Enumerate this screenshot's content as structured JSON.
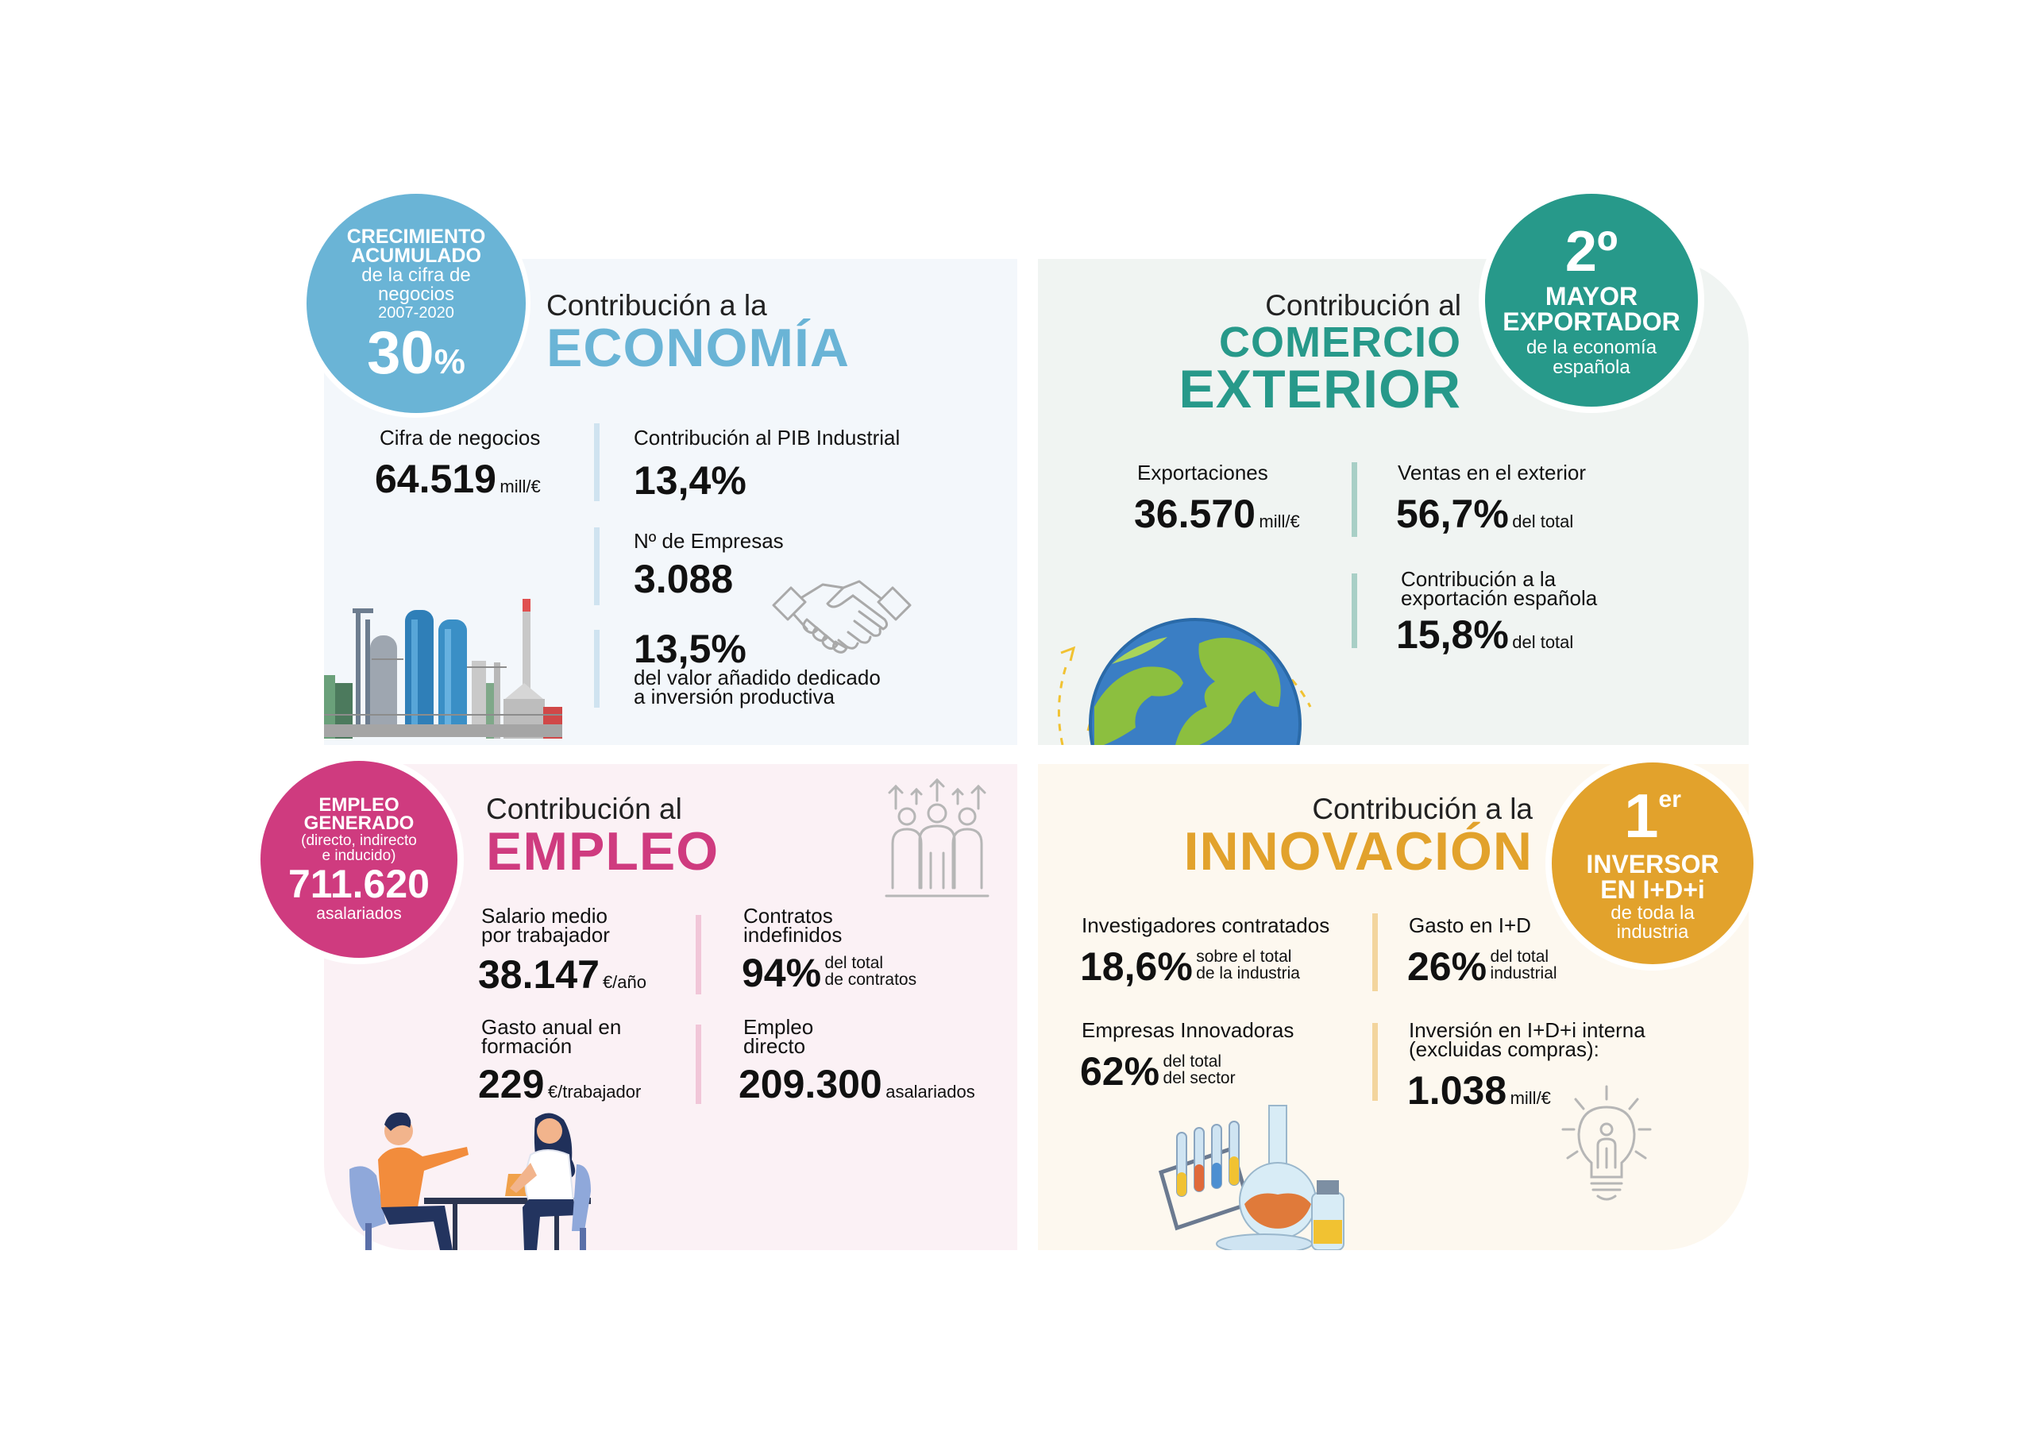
{
  "colors": {
    "economia": "#6ab4d6",
    "comercio": "#27998a",
    "empleo": "#cf3b7f",
    "innovacion": "#e2a22c"
  },
  "economia": {
    "badge": {
      "line1": "CRECIMIENTO",
      "line2": "ACUMULADO",
      "line3": "de la cifra de",
      "line4": "negocios",
      "line5": "2007-2020",
      "value": "30",
      "pct": "%"
    },
    "heading_small": "Contribución a la",
    "heading_big": "ECONOMÍA",
    "stats": {
      "cifra_label": "Cifra de negocios",
      "cifra_value": "64.519",
      "cifra_unit": "mill/€",
      "pib_label": "Contribución al PIB Industrial",
      "pib_value": "13,4%",
      "empresas_label": "Nº de Empresas",
      "empresas_value": "3.088",
      "inversion_value": "13,5%",
      "inversion_line1": "del valor añadido dedicado",
      "inversion_line2": "a inversión productiva"
    },
    "icons": [
      "factory-icon",
      "handshake-icon"
    ]
  },
  "comercio": {
    "badge": {
      "value": "2º",
      "line1": "MAYOR",
      "line2": "EXPORTADOR",
      "line3": "de la economía",
      "line4": "española"
    },
    "heading_small": "Contribución al",
    "heading_big1": "COMERCIO",
    "heading_big2": "EXTERIOR",
    "stats": {
      "export_label": "Exportaciones",
      "export_value": "36.570",
      "export_unit": "mill/€",
      "ventas_label": "Ventas en el exterior",
      "ventas_value": "56,7%",
      "ventas_unit": "del total",
      "contrib_line1": "Contribución a la",
      "contrib_line2": "exportación española",
      "contrib_value": "15,8%",
      "contrib_unit": "del total"
    },
    "icons": [
      "globe-icon"
    ]
  },
  "empleo": {
    "badge": {
      "line1": "EMPLEO",
      "line2": "GENERADO",
      "line3": "(directo, indirecto",
      "line4": "e inducido)",
      "value": "711.620",
      "line5": "asalariados"
    },
    "heading_small": "Contribución al",
    "heading_big": "EMPLEO",
    "stats": {
      "salario_line1": "Salario medio",
      "salario_line2": "por trabajador",
      "salario_value": "38.147",
      "salario_unit": "€/año",
      "contratos_line1": "Contratos",
      "contratos_line2": "indefinidos",
      "contratos_value": "94%",
      "contratos_unit1": "del total",
      "contratos_unit2": "de contratos",
      "gasto_line1": "Gasto anual en",
      "gasto_line2": "formación",
      "gasto_value": "229",
      "gasto_unit": "€/trabajador",
      "directo_line1": "Empleo",
      "directo_line2": "directo",
      "directo_value": "209.300",
      "directo_unit": "asalariados"
    },
    "icons": [
      "people-growth-icon",
      "meeting-people-icon"
    ]
  },
  "innovacion": {
    "badge": {
      "value": "1",
      "sup": "er",
      "line1": "INVERSOR",
      "line2": "EN I+D+i",
      "line3": "de toda la",
      "line4": "industria"
    },
    "heading_small": "Contribución a la",
    "heading_big": "INNOVACIÓN",
    "stats": {
      "invest_label": "Investigadores contratados",
      "invest_value": "18,6%",
      "invest_unit1": "sobre el total",
      "invest_unit2": "de la industria",
      "gasto_label": "Gasto en I+D",
      "gasto_value": "26%",
      "gasto_unit1": "del total",
      "gasto_unit2": "industrial",
      "empresas_label": "Empresas Innovadoras",
      "empresas_value": "62%",
      "empresas_unit1": "del total",
      "empresas_unit2": "del sector",
      "interna_line1": "Inversión en I+D+i interna",
      "interna_line2": "(excluidas compras):",
      "interna_value": "1.038",
      "interna_unit": "mill/€"
    },
    "icons": [
      "lab-flasks-icon",
      "lightbulb-person-icon"
    ]
  }
}
